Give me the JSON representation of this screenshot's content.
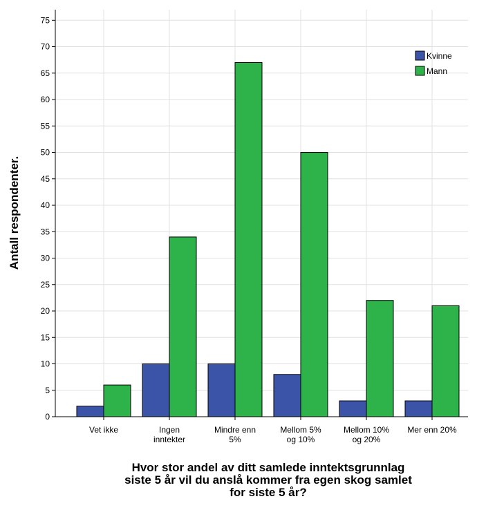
{
  "chart_data": {
    "type": "bar",
    "title": "",
    "xlabel": [
      "Hvor stor andel av ditt samlede inntektsgrunnlag",
      "siste 5 år vil du anslå kommer fra egen skog samlet",
      "for siste 5 år?"
    ],
    "ylabel": "Antall respondenter.",
    "categories": [
      [
        "Vet ikke"
      ],
      [
        "Ingen",
        "inntekter"
      ],
      [
        "Mindre enn",
        "5%"
      ],
      [
        "Mellom 5%",
        "og 10%"
      ],
      [
        "Mellom 10%",
        "og 20%"
      ],
      [
        "Mer enn 20%"
      ]
    ],
    "series": [
      {
        "name": "Kvinne",
        "color": "#3c54a8",
        "values": [
          2,
          10,
          10,
          8,
          3,
          3
        ]
      },
      {
        "name": "Mann",
        "color": "#2eb34a",
        "values": [
          6,
          34,
          67,
          50,
          22,
          21
        ]
      }
    ],
    "ylim": [
      0,
      77
    ],
    "yticks": [
      0,
      5,
      10,
      15,
      20,
      25,
      30,
      35,
      40,
      45,
      50,
      55,
      60,
      65,
      70,
      75
    ],
    "grid": true,
    "legend_position": "top-right"
  }
}
